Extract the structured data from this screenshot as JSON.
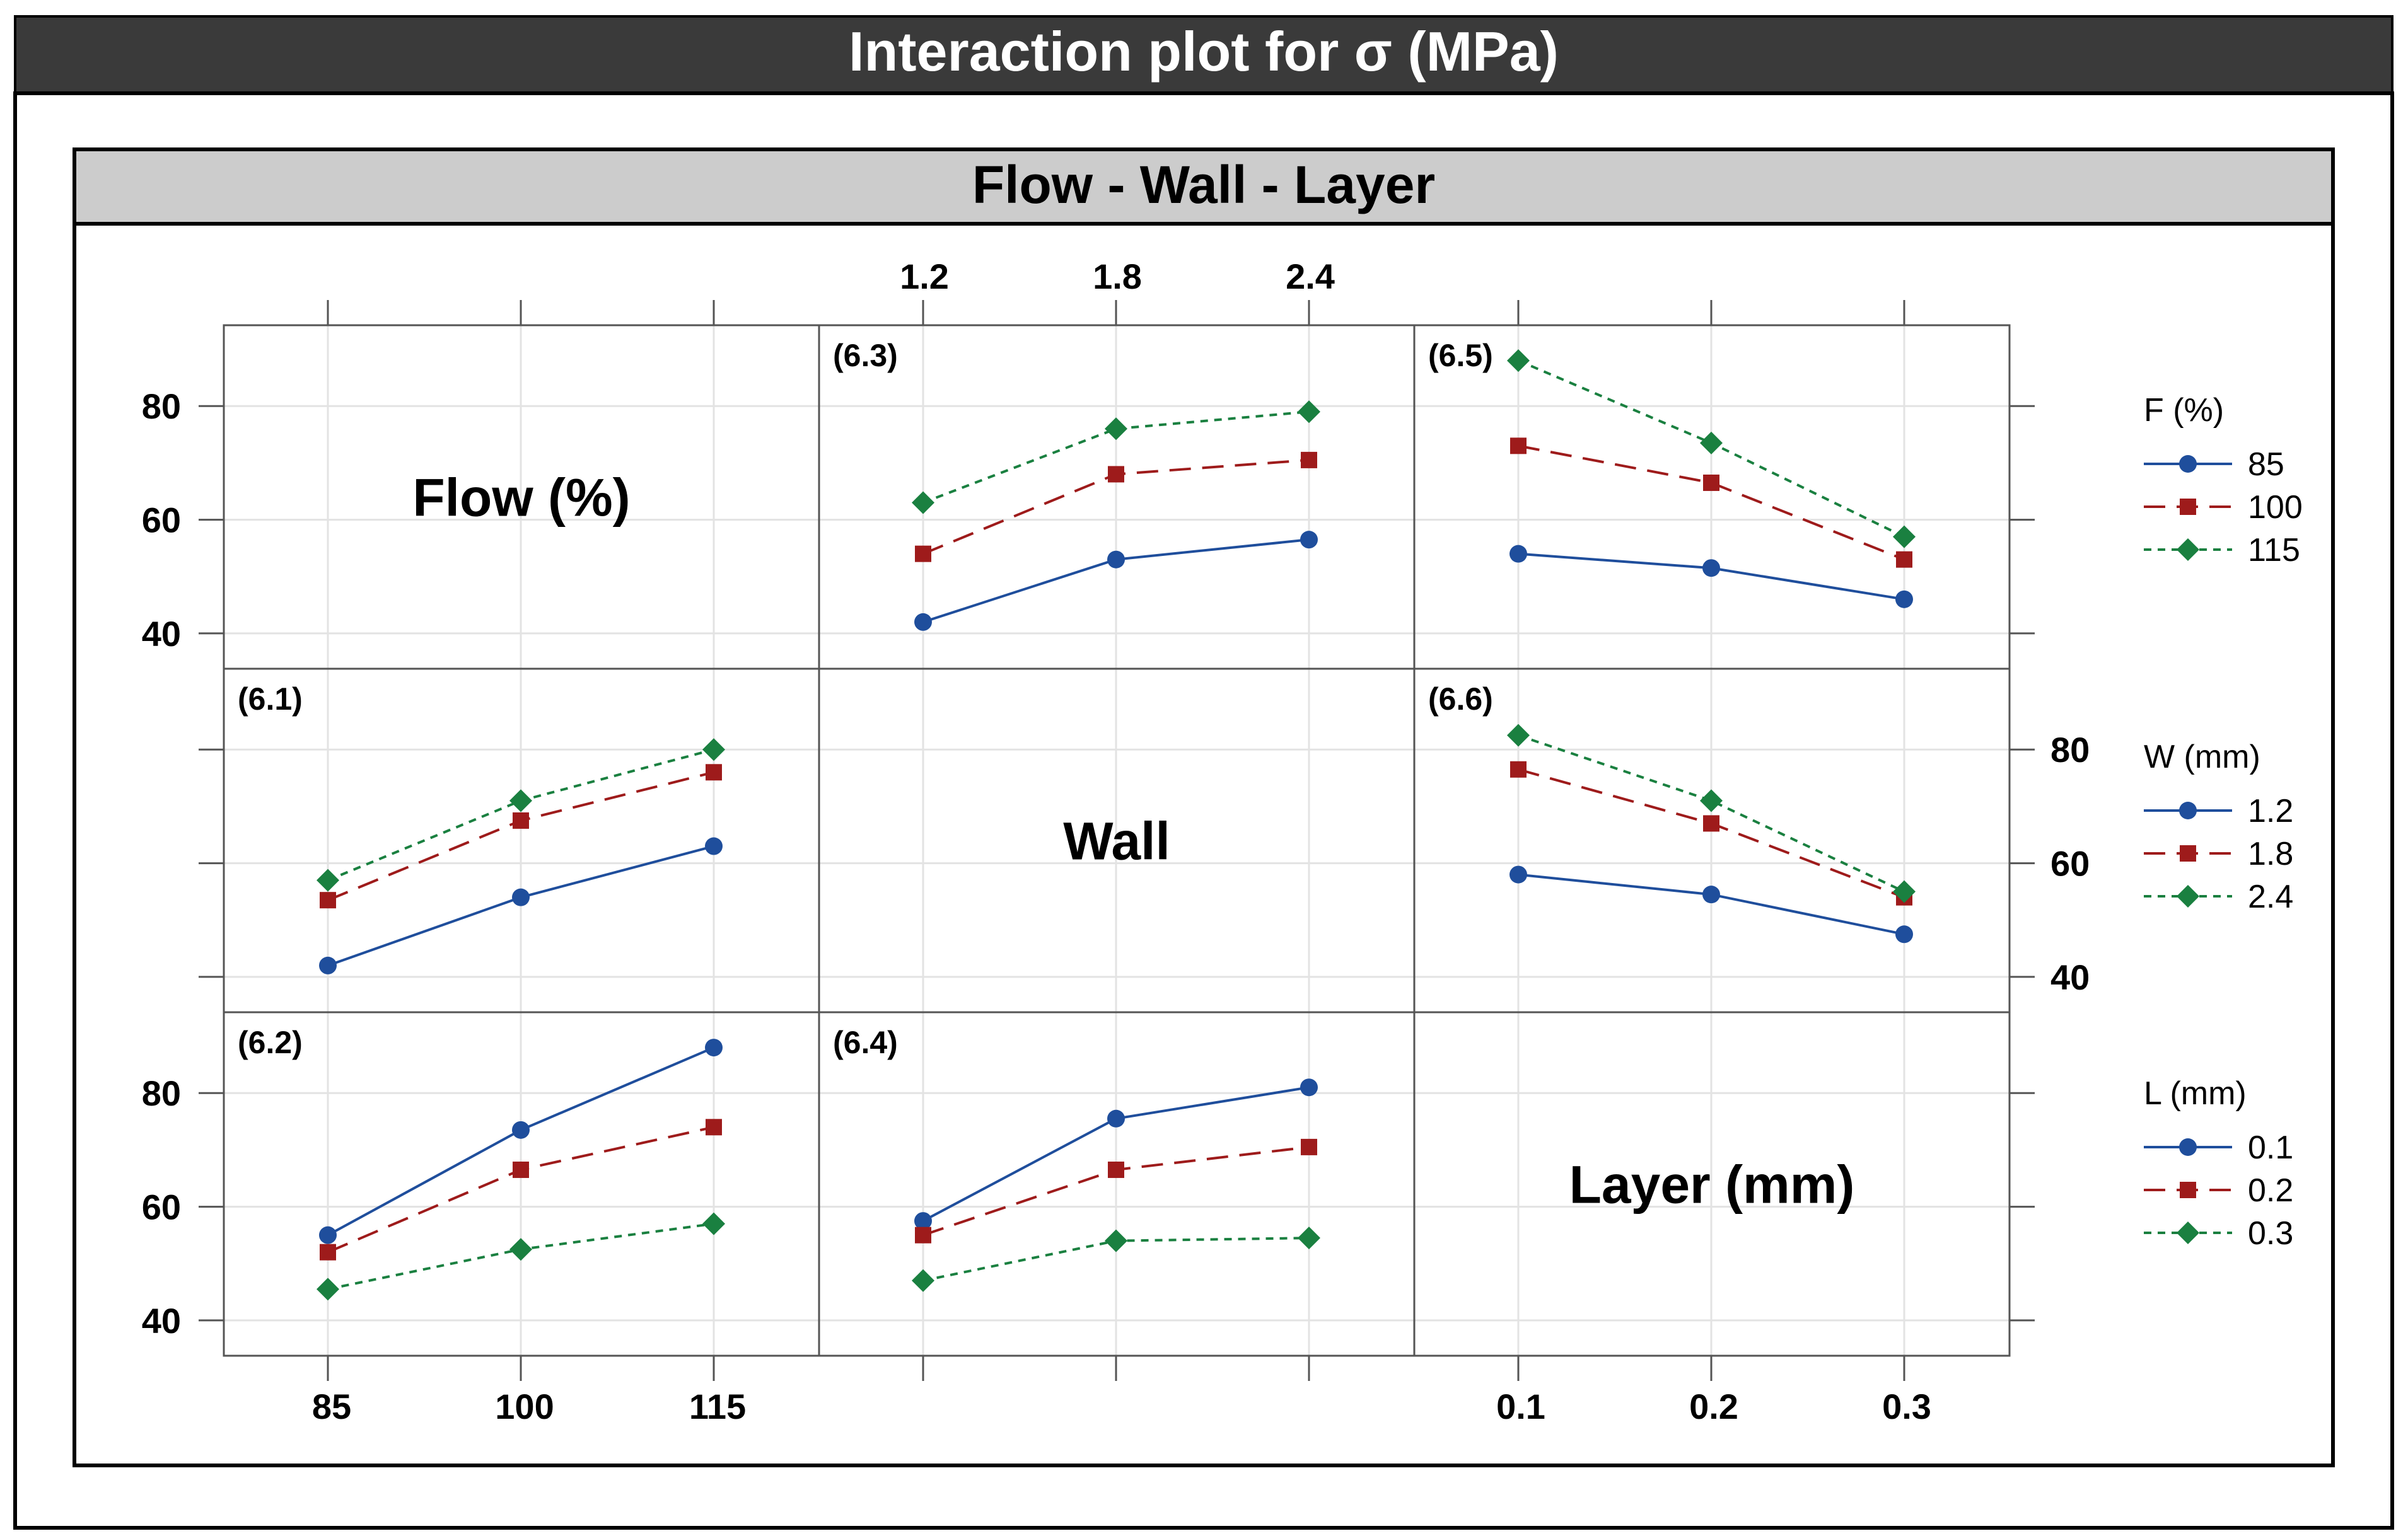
{
  "title": "Interaction plot for σ (MPa)",
  "subtitle": "Flow - Wall - Layer",
  "factors": {
    "flow": {
      "name": "Flow (%)",
      "levels": [
        "85",
        "100",
        "115"
      ]
    },
    "wall": {
      "name": "Wall",
      "levels": [
        "1.2",
        "1.8",
        "2.4"
      ]
    },
    "layer": {
      "name": "Layer (mm)",
      "levels": [
        "0.1",
        "0.2",
        "0.3"
      ]
    }
  },
  "y_ticks": [
    "40",
    "60",
    "80"
  ],
  "legends": [
    {
      "title": "F (%)",
      "entries": [
        "85",
        "100",
        "115"
      ]
    },
    {
      "title": "W (mm)",
      "entries": [
        "1.2",
        "1.8",
        "2.4"
      ]
    },
    {
      "title": "L (mm)",
      "entries": [
        "0.1",
        "0.2",
        "0.3"
      ]
    }
  ],
  "colors": {
    "series1": "#1f4e9c",
    "series2": "#9e1b1b",
    "series3": "#1a8040",
    "title_bar": "#3a3a3a",
    "header_bar": "#cccccc"
  },
  "chart_data": {
    "type": "line",
    "title": "Interaction plot for σ (MPa)",
    "ylim": [
      36,
      92
    ],
    "panels": [
      {
        "label": "(6.1)",
        "x_factor": "Flow (%)",
        "trace_factor": "W (mm)",
        "categories": [
          "85",
          "100",
          "115"
        ],
        "series": [
          {
            "name": "1.2",
            "values": [
              42,
              54,
              63
            ]
          },
          {
            "name": "1.8",
            "values": [
              53.5,
              67.5,
              76
            ]
          },
          {
            "name": "2.4",
            "values": [
              57,
              71,
              80
            ]
          }
        ]
      },
      {
        "label": "(6.2)",
        "x_factor": "Flow (%)",
        "trace_factor": "L (mm)",
        "categories": [
          "85",
          "100",
          "115"
        ],
        "series": [
          {
            "name": "0.1",
            "values": [
              55,
              73.5,
              88
            ]
          },
          {
            "name": "0.2",
            "values": [
              52,
              66.5,
              74
            ]
          },
          {
            "name": "0.3",
            "values": [
              45.5,
              52.5,
              57
            ]
          }
        ]
      },
      {
        "label": "(6.3)",
        "x_factor": "Wall",
        "trace_factor": "F (%)",
        "categories": [
          "1.2",
          "1.8",
          "2.4"
        ],
        "series": [
          {
            "name": "85",
            "values": [
              42,
              53,
              56.5
            ]
          },
          {
            "name": "100",
            "values": [
              54,
              68,
              70.5
            ]
          },
          {
            "name": "115",
            "values": [
              63,
              76,
              79
            ]
          }
        ]
      },
      {
        "label": "(6.4)",
        "x_factor": "Wall",
        "trace_factor": "L (mm)",
        "categories": [
          "1.2",
          "1.8",
          "2.4"
        ],
        "series": [
          {
            "name": "0.1",
            "values": [
              57.5,
              75.5,
              81
            ]
          },
          {
            "name": "0.2",
            "values": [
              55,
              66.5,
              70.5
            ]
          },
          {
            "name": "0.3",
            "values": [
              47,
              54,
              54.5
            ]
          }
        ]
      },
      {
        "label": "(6.5)",
        "x_factor": "Layer (mm)",
        "trace_factor": "F (%)",
        "categories": [
          "0.1",
          "0.2",
          "0.3"
        ],
        "series": [
          {
            "name": "85",
            "values": [
              54,
              51.5,
              46
            ]
          },
          {
            "name": "100",
            "values": [
              73,
              66.5,
              53
            ]
          },
          {
            "name": "115",
            "values": [
              88,
              73.5,
              57
            ]
          }
        ]
      },
      {
        "label": "(6.6)",
        "x_factor": "Layer (mm)",
        "trace_factor": "W (mm)",
        "categories": [
          "0.1",
          "0.2",
          "0.3"
        ],
        "series": [
          {
            "name": "1.2",
            "values": [
              58,
              54.5,
              47.5
            ]
          },
          {
            "name": "1.8",
            "values": [
              76.5,
              67,
              54
            ]
          },
          {
            "name": "2.4",
            "values": [
              82.5,
              71,
              55
            ]
          }
        ]
      }
    ]
  }
}
